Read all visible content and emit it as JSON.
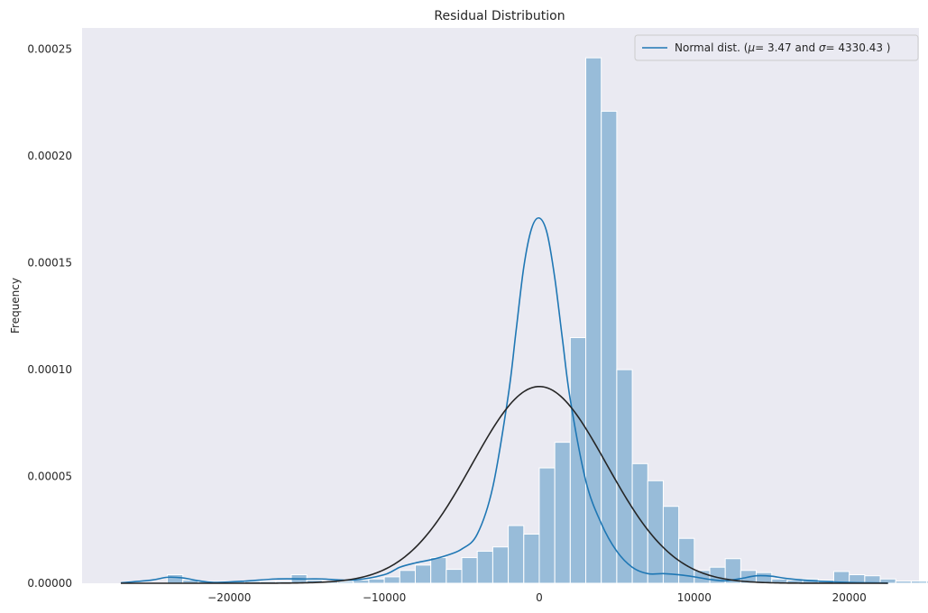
{
  "chart_data": {
    "type": "bar",
    "title": "Residual Distribution",
    "xlabel": "",
    "ylabel": "Frequency",
    "xlim": [
      -29500,
      24500
    ],
    "ylim": [
      0,
      0.00026
    ],
    "grid": false,
    "background_color": "#eaeaf2",
    "bar_color": "#1f77b4",
    "bar_opacity": 0.4,
    "kde_color": "#1f77b4",
    "normal_color": "#262626",
    "x_ticks": [
      -20000,
      -10000,
      0,
      10000,
      20000
    ],
    "x_tick_labels": [
      "−20000",
      "−10000",
      "0",
      "10000",
      "20000"
    ],
    "y_ticks": [
      0,
      5e-05,
      0.0001,
      0.00015,
      0.0002,
      0.00025
    ],
    "y_tick_labels": [
      "0.00000",
      "0.00005",
      "0.00010",
      "0.00015",
      "0.00020",
      "0.00025"
    ],
    "legend": {
      "placement": "top-right",
      "prefix": "Normal dist. (",
      "mu_symbol": "μ",
      "mu_value": "=  3.47 and ",
      "sigma_symbol": "σ",
      "sigma_value": "=  4330.43 )"
    },
    "normal_params": {
      "mu": 3.47,
      "sigma": 4330.43
    },
    "histogram": {
      "bin_start": -24000,
      "bin_width": 1000,
      "heights": [
        4e-06,
        1.5e-06,
        8e-07,
        8e-07,
        8e-07,
        8e-07,
        8e-07,
        8e-07,
        4e-06,
        1.5e-06,
        8e-07,
        8e-07,
        1.5e-06,
        2e-06,
        3e-06,
        6e-06,
        8.5e-06,
        1.2e-05,
        6.5e-06,
        1.2e-05,
        1.5e-05,
        1.7e-05,
        2.7e-05,
        2.3e-05,
        5.4e-05,
        6.6e-05,
        0.000115,
        0.000246,
        0.000221,
        0.0001,
        5.6e-05,
        4.8e-05,
        3.6e-05,
        2.1e-05,
        6e-06,
        7.5e-06,
        1.15e-05,
        6e-06,
        5e-06,
        2e-06,
        1.5e-06,
        2e-06,
        1.5e-06,
        5.5e-06,
        4e-06,
        3.5e-06,
        2e-06,
        1e-06,
        1e-06,
        1e-06
      ]
    },
    "kde": {
      "x": [
        -27000,
        -25000,
        -24000,
        -23000,
        -22000,
        -21000,
        -19000,
        -17000,
        -15000,
        -14000,
        -12000,
        -10000,
        -9000,
        -8000,
        -7000,
        -6000,
        -5000,
        -4000,
        -3000,
        -2000,
        -1500,
        -1000,
        -500,
        0,
        500,
        1000,
        1500,
        2000,
        3000,
        4000,
        5000,
        6000,
        7000,
        8000,
        9000,
        10000,
        11000,
        12000,
        13000,
        14000,
        15000,
        16000,
        18000,
        20000,
        22500
      ],
      "y": [
        2e-07,
        1.5e-06,
        2.8e-06,
        2.5e-06,
        1.2e-06,
        4e-07,
        1e-06,
        2e-06,
        2e-06,
        2e-06,
        1.5e-06,
        4e-06,
        7.5e-06,
        9.5e-06,
        1.1e-05,
        1.3e-05,
        1.6e-05,
        2.3e-05,
        4.5e-05,
        8.8e-05,
        0.000118,
        0.000148,
        0.000166,
        0.000171,
        0.000164,
        0.000143,
        0.000114,
        8.6e-05,
        4.8e-05,
        2.8e-05,
        1.5e-05,
        7.5e-06,
        4.5e-06,
        4.5e-06,
        4e-06,
        3e-06,
        1.8e-06,
        1.2e-06,
        2.2e-06,
        3.5e-06,
        3.3e-06,
        2.2e-06,
        1e-06,
        4e-07,
        1e-07
      ]
    }
  }
}
